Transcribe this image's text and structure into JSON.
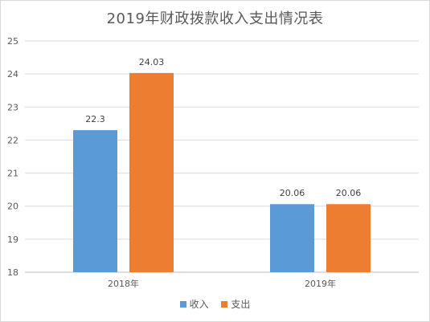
{
  "chart_data": {
    "type": "bar",
    "title": "2019年财政拨款收入支出情况表",
    "categories": [
      "2018年",
      "2019年"
    ],
    "series": [
      {
        "name": "收入",
        "color": "#5b9bd5",
        "values": [
          22.3,
          20.06
        ],
        "labels": [
          "22.3",
          "20.06"
        ]
      },
      {
        "name": "支出",
        "color": "#ed7d31",
        "values": [
          24.03,
          20.06
        ],
        "labels": [
          "24.03",
          "20.06"
        ]
      }
    ],
    "ylim": [
      18,
      25
    ],
    "yticks": [
      "18",
      "19",
      "20",
      "21",
      "22",
      "23",
      "24",
      "25"
    ],
    "grid": true,
    "legend_position": "bottom"
  }
}
